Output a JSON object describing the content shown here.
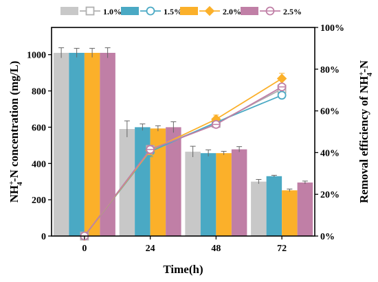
{
  "chart_data": {
    "type": "bar+line",
    "x_categories": [
      "0",
      "24",
      "48",
      "72"
    ],
    "xlabel": "Time(h)",
    "ylabel_left": {
      "main": "NH",
      "sup": "+",
      "sub": "4",
      "rest": "-N concentration (mg/L)"
    },
    "ylabel_right": {
      "main": "Removal efficiency of  NH",
      "sup": "+",
      "sub": "4",
      "rest": "-N"
    },
    "ylim_left": [
      0,
      1150
    ],
    "yticks_left": [
      0,
      200,
      400,
      600,
      800,
      1000
    ],
    "ylim_right": [
      0,
      100
    ],
    "yticks_right": [
      0,
      20,
      40,
      60,
      80,
      100
    ],
    "ytick_labels_right": [
      "0%",
      "20%",
      "40%",
      "60%",
      "80%",
      "100%"
    ],
    "legend_position": "top",
    "series": [
      {
        "name": "1.0%",
        "color": "#c8c8c8",
        "line_color": "#b0b0b0",
        "marker": "square-open",
        "bar_values": [
          1010,
          590,
          465,
          300
        ],
        "bar_errors": [
          28,
          45,
          30,
          12
        ],
        "line_values": [
          0,
          41.5,
          54,
          70.5
        ],
        "line_errors": [
          0,
          2,
          1.5,
          1.5
        ]
      },
      {
        "name": "1.5%",
        "color": "#4aa9c4",
        "line_color": "#4aa9c4",
        "marker": "circle-open",
        "bar_values": [
          1010,
          600,
          457,
          330
        ],
        "bar_errors": [
          25,
          18,
          18,
          5
        ],
        "line_values": [
          0,
          40.5,
          54.5,
          67.5
        ],
        "line_errors": [
          0,
          2.5,
          1.5,
          1.5
        ]
      },
      {
        "name": "2.0%",
        "color": "#fbb02a",
        "line_color": "#fbb02a",
        "marker": "diamond",
        "bar_values": [
          1010,
          593,
          457,
          252
        ],
        "bar_errors": [
          25,
          15,
          10,
          7
        ],
        "line_values": [
          0,
          41,
          56,
          75.5
        ],
        "line_errors": [
          0,
          2,
          2,
          2.5
        ]
      },
      {
        "name": "2.5%",
        "color": "#c07fa6",
        "line_color": "#c07fa6",
        "marker": "circle-cross",
        "bar_values": [
          1010,
          600,
          478,
          295
        ],
        "bar_errors": [
          28,
          30,
          15,
          8
        ],
        "line_values": [
          0,
          41.5,
          53.5,
          71.5
        ],
        "line_errors": [
          0,
          2,
          1.5,
          1.5
        ]
      }
    ]
  }
}
